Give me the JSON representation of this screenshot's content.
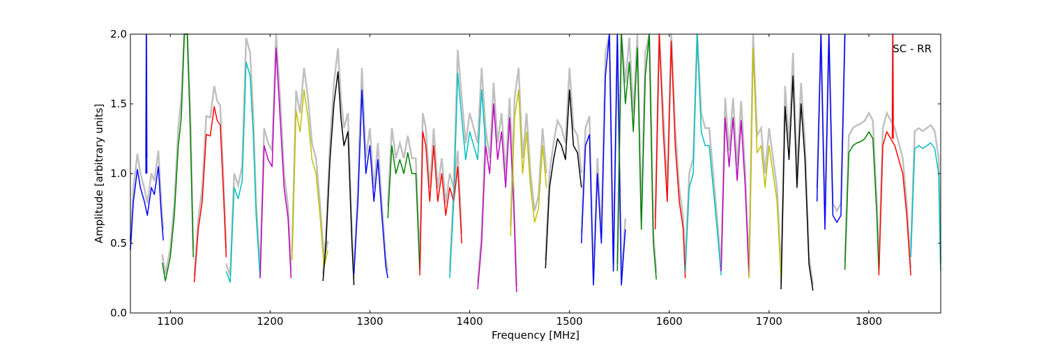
{
  "chart_data": {
    "type": "line",
    "xlabel": "Frequency [MHz]",
    "ylabel": "Amplitude [arbitrary units]",
    "annotation": "SC - RR",
    "xlim": [
      1060,
      1872
    ],
    "ylim": [
      0.0,
      2.0
    ],
    "x_ticks": [
      1100,
      1200,
      1300,
      1400,
      1500,
      1600,
      1700,
      1800
    ],
    "x_tick_labels": [
      "1100",
      "1200",
      "1300",
      "1400",
      "1500",
      "1600",
      "1700",
      "1800"
    ],
    "y_ticks": [
      0.0,
      0.5,
      1.0,
      1.5,
      2.0
    ],
    "y_tick_labels": [
      "0.0",
      "0.5",
      "1.0",
      "1.5",
      "2.0"
    ],
    "grid": false,
    "legend": "none",
    "background_trace_color": "#c0c0c0",
    "series": [
      {
        "color": "#0000ff",
        "x": [
          1060,
          1063,
          1067,
          1070,
          1074,
          1077,
          1081,
          1084,
          1088,
          1091,
          1093
        ],
        "y": [
          0.45,
          0.8,
          1.03,
          0.9,
          0.8,
          0.7,
          0.9,
          0.85,
          1.05,
          0.7,
          0.52
        ]
      },
      {
        "color": "#0000ff",
        "x": [
          1075.5,
          1076,
          1076.5
        ],
        "y": [
          1.0,
          2.0,
          1.0
        ]
      },
      {
        "color": "#008000",
        "x": [
          1092,
          1095,
          1100,
          1104,
          1108,
          1111,
          1114,
          1117,
          1120,
          1123
        ],
        "y": [
          0.36,
          0.23,
          0.4,
          0.7,
          1.2,
          1.4,
          2.0,
          2.0,
          1.3,
          0.4
        ]
      },
      {
        "color": "#ff0000",
        "x": [
          1124,
          1128,
          1132,
          1136,
          1140,
          1144,
          1147,
          1150,
          1153,
          1156
        ],
        "y": [
          0.22,
          0.6,
          0.8,
          1.28,
          1.27,
          1.48,
          1.38,
          1.35,
          0.9,
          0.4
        ]
      },
      {
        "color": "#00bfbf",
        "x": [
          1156,
          1160,
          1164,
          1168,
          1172,
          1176,
          1180,
          1183,
          1186,
          1190
        ],
        "y": [
          0.3,
          0.22,
          0.9,
          0.82,
          0.95,
          1.8,
          1.7,
          1.3,
          0.7,
          0.25
        ]
      },
      {
        "color": "#bf00bf",
        "x": [
          1190,
          1194,
          1198,
          1202,
          1206,
          1210,
          1214,
          1218,
          1221
        ],
        "y": [
          0.25,
          1.2,
          1.1,
          1.05,
          1.9,
          1.4,
          0.9,
          0.68,
          0.25
        ]
      },
      {
        "color": "#bfbf00",
        "x": [
          1222,
          1226,
          1230,
          1234,
          1238,
          1242,
          1246,
          1250,
          1254,
          1258
        ],
        "y": [
          0.38,
          1.45,
          1.3,
          1.6,
          1.4,
          1.1,
          1.0,
          0.7,
          0.33,
          0.45
        ]
      },
      {
        "color": "#000000",
        "x": [
          1253,
          1256,
          1260,
          1264,
          1268,
          1271,
          1274,
          1278,
          1282,
          1284
        ],
        "y": [
          0.23,
          0.5,
          1.1,
          1.5,
          1.73,
          1.4,
          1.2,
          1.3,
          0.5,
          0.2
        ]
      },
      {
        "color": "#0000ff",
        "x": [
          1284,
          1288,
          1292,
          1296,
          1300,
          1304,
          1308,
          1312,
          1316,
          1318
        ],
        "y": [
          0.28,
          0.8,
          1.6,
          1.0,
          1.2,
          0.8,
          1.1,
          0.7,
          0.33,
          0.25
        ]
      },
      {
        "color": "#008000",
        "x": [
          1318,
          1322,
          1326,
          1330,
          1334,
          1338,
          1342,
          1346,
          1350
        ],
        "y": [
          0.68,
          1.2,
          1.0,
          1.1,
          1.0,
          1.15,
          1.0,
          1.0,
          0.3
        ]
      },
      {
        "color": "#ff0000",
        "x": [
          1350,
          1353,
          1356,
          1360,
          1364,
          1368,
          1372,
          1376,
          1380,
          1384,
          1388,
          1392
        ],
        "y": [
          0.27,
          1.3,
          1.2,
          0.8,
          1.2,
          0.8,
          1.0,
          0.7,
          0.9,
          0.8,
          1.05,
          0.5
        ]
      },
      {
        "color": "#00bfbf",
        "x": [
          1380,
          1384,
          1388,
          1392,
          1396,
          1400,
          1404,
          1408,
          1412,
          1416
        ],
        "y": [
          0.25,
          0.8,
          1.72,
          1.4,
          1.1,
          1.3,
          1.2,
          1.1,
          1.6,
          1.2
        ]
      },
      {
        "color": "#bf00bf",
        "x": [
          1408,
          1412,
          1416,
          1420,
          1424,
          1428,
          1432,
          1436,
          1440,
          1444,
          1447
        ],
        "y": [
          0.17,
          0.5,
          1.2,
          1.0,
          1.5,
          1.1,
          1.3,
          0.9,
          1.4,
          0.8,
          0.15
        ]
      },
      {
        "color": "#bfbf00",
        "x": [
          1441,
          1445,
          1449,
          1453,
          1457,
          1461,
          1465,
          1469,
          1473,
          1477
        ],
        "y": [
          0.55,
          1.4,
          1.6,
          1.0,
          1.3,
          0.9,
          0.65,
          0.75,
          1.2,
          0.9
        ]
      },
      {
        "color": "#000000",
        "x": [
          1476,
          1480,
          1484,
          1488,
          1492,
          1496,
          1500,
          1504,
          1508,
          1512
        ],
        "y": [
          0.32,
          0.9,
          1.1,
          1.25,
          1.2,
          1.1,
          1.6,
          1.2,
          1.15,
          0.9
        ]
      },
      {
        "color": "#0000ff",
        "x": [
          1512,
          1516,
          1520,
          1524,
          1528,
          1532,
          1536,
          1540,
          1544,
          1548,
          1552,
          1556
        ],
        "y": [
          0.5,
          1.2,
          1.28,
          0.2,
          1.0,
          0.5,
          1.7,
          2.0,
          0.3,
          2.0,
          0.2,
          0.6
        ]
      },
      {
        "color": "#008000",
        "x": [
          1548,
          1552,
          1556,
          1560,
          1564,
          1568,
          1572,
          1576,
          1580,
          1584,
          1587
        ],
        "y": [
          0.3,
          2.0,
          1.5,
          1.8,
          1.3,
          1.9,
          0.6,
          1.7,
          2.0,
          0.5,
          0.24
        ]
      },
      {
        "color": "#ff0000",
        "x": [
          1586,
          1590,
          1594,
          1598,
          1602,
          1606,
          1610,
          1614,
          1616
        ],
        "y": [
          0.6,
          2.0,
          1.3,
          0.8,
          1.95,
          1.2,
          0.8,
          0.6,
          0.25
        ]
      },
      {
        "color": "#00bfbf",
        "x": [
          1616,
          1620,
          1624,
          1628,
          1632,
          1636,
          1640,
          1644,
          1648,
          1652
        ],
        "y": [
          0.3,
          0.9,
          1.0,
          2.0,
          1.3,
          1.2,
          1.2,
          0.9,
          0.6,
          0.27
        ]
      },
      {
        "color": "#bf00bf",
        "x": [
          1652,
          1656,
          1660,
          1664,
          1668,
          1672,
          1676,
          1680
        ],
        "y": [
          0.3,
          1.4,
          1.05,
          1.4,
          0.95,
          1.38,
          0.92,
          0.25
        ]
      },
      {
        "color": "#bfbf00",
        "x": [
          1680,
          1684,
          1688,
          1692,
          1696,
          1700,
          1704,
          1708,
          1712
        ],
        "y": [
          0.25,
          1.9,
          1.15,
          1.2,
          0.9,
          1.2,
          1.0,
          0.8,
          0.25
        ]
      },
      {
        "color": "#000000",
        "x": [
          1712,
          1716,
          1720,
          1724,
          1728,
          1732,
          1736,
          1740,
          1744
        ],
        "y": [
          0.17,
          1.48,
          1.1,
          1.7,
          0.9,
          1.5,
          1.1,
          0.35,
          0.16
        ]
      },
      {
        "color": "#0000ff",
        "x": [
          1748,
          1752,
          1756,
          1760,
          1764,
          1768,
          1772,
          1776
        ],
        "y": [
          0.8,
          2.0,
          0.6,
          2.0,
          0.7,
          0.65,
          0.7,
          2.0
        ]
      },
      {
        "color": "#008000",
        "x": [
          1776,
          1780,
          1784,
          1788,
          1792,
          1796,
          1800,
          1804,
          1808,
          1810
        ],
        "y": [
          0.31,
          1.15,
          1.2,
          1.22,
          1.23,
          1.25,
          1.3,
          1.25,
          0.7,
          0.3
        ]
      },
      {
        "color": "#ff0000",
        "x": [
          1810,
          1814,
          1818,
          1822,
          1826,
          1830,
          1834,
          1838,
          1842
        ],
        "y": [
          0.27,
          1.2,
          1.3,
          1.25,
          1.2,
          1.1,
          1.0,
          0.7,
          0.27
        ]
      },
      {
        "color": "#ff0000",
        "x": [
          1823.5,
          1824,
          1824.5
        ],
        "y": [
          1.25,
          2.0,
          1.25
        ]
      },
      {
        "color": "#00bfbf",
        "x": [
          1842,
          1846,
          1850,
          1854,
          1858,
          1862,
          1866,
          1870,
          1872
        ],
        "y": [
          0.4,
          1.18,
          1.2,
          1.18,
          1.2,
          1.22,
          1.18,
          1.0,
          0.3
        ]
      }
    ]
  }
}
